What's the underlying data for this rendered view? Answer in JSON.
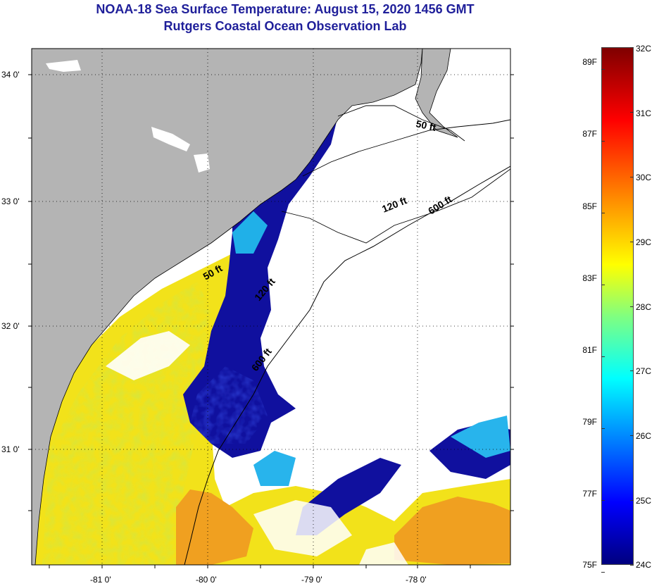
{
  "title": {
    "line1": "NOAA-18 Sea Surface Temperature:  August 15, 2020 1456 GMT",
    "line2": "Rutgers Coastal Ocean Observation Lab"
  },
  "map": {
    "latitude_labels": [
      "34 0'",
      "33 0'",
      "32 0'",
      "31 0'"
    ],
    "longitude_labels": [
      "-81 0'",
      "-80 0'",
      "-79 0'",
      "-78 0'"
    ],
    "latitude_values": [
      34,
      33,
      32,
      31
    ],
    "longitude_values": [
      -81,
      -80,
      -79,
      -78
    ],
    "lat_range": [
      30.2,
      34.2
    ],
    "lon_range": [
      -81.65,
      -77.0
    ],
    "isobath_labels": [
      "50 ft",
      "120 ft",
      "600 ft",
      "50 ft",
      "120 ft",
      "600 ft"
    ],
    "colors": {
      "land": "#b4b4b4",
      "cloud": "#ffffff",
      "cold": "#10109e",
      "warm": "#f2e21a",
      "hot": "#f0a020"
    }
  },
  "colorbar": {
    "fahrenheit_labels": [
      "89F",
      "87F",
      "85F",
      "83F",
      "81F",
      "79F",
      "77F",
      "75F"
    ],
    "celsius_labels": [
      "32C",
      "31C",
      "30C",
      "29C",
      "28C",
      "27C",
      "26C",
      "25C",
      "24C"
    ],
    "range_c": [
      24,
      32
    ],
    "colormap": "jet"
  }
}
